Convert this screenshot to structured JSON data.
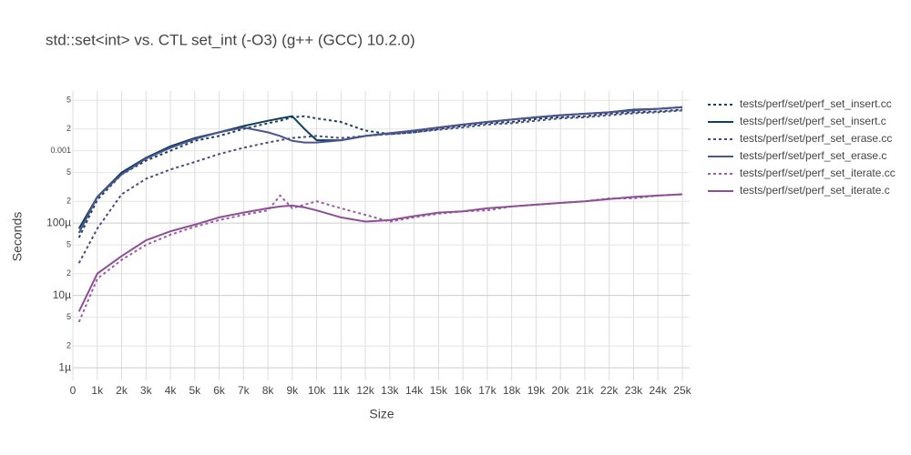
{
  "chart_data": {
    "type": "line",
    "title": "std::set<int> vs. CTL set_int (-O3) (g++ (GCC) 10.2.0)",
    "xlabel": "Size",
    "ylabel": "Seconds",
    "log_y": true,
    "grid": true,
    "legend": "right",
    "x": [
      250,
      1000,
      2000,
      3000,
      4000,
      5000,
      6000,
      7000,
      8000,
      8500,
      9000,
      9500,
      10000,
      11000,
      12000,
      13000,
      14000,
      15000,
      16000,
      17000,
      18000,
      19000,
      20000,
      21000,
      22000,
      23000,
      24000,
      25000
    ],
    "xlim": [
      0,
      25300
    ],
    "xticks": [
      0,
      {
        "value": 1000,
        "label": "1k"
      },
      {
        "value": 2000,
        "label": "2k"
      },
      {
        "value": 3000,
        "label": "3k"
      },
      {
        "value": 4000,
        "label": "4k"
      },
      {
        "value": 5000,
        "label": "5k"
      },
      {
        "value": 6000,
        "label": "6k"
      },
      {
        "value": 7000,
        "label": "7k"
      },
      {
        "value": 8000,
        "label": "8k"
      },
      {
        "value": 9000,
        "label": "9k"
      },
      {
        "value": 10000,
        "label": "10k"
      },
      {
        "value": 11000,
        "label": "11k"
      },
      {
        "value": 12000,
        "label": "12k"
      },
      {
        "value": 13000,
        "label": "13k"
      },
      {
        "value": 14000,
        "label": "14k"
      },
      {
        "value": 15000,
        "label": "15k"
      },
      {
        "value": 16000,
        "label": "16k"
      },
      {
        "value": 17000,
        "label": "17k"
      },
      {
        "value": 18000,
        "label": "18k"
      },
      {
        "value": 19000,
        "label": "19k"
      },
      {
        "value": 20000,
        "label": "20k"
      },
      {
        "value": 21000,
        "label": "21k"
      },
      {
        "value": 22000,
        "label": "22k"
      },
      {
        "value": 23000,
        "label": "23k"
      },
      {
        "value": 24000,
        "label": "24k"
      },
      {
        "value": 25000,
        "label": "25k"
      }
    ],
    "ylim": [
      6.7e-07,
      0.0067
    ],
    "yticks": [
      {
        "value": 1e-06,
        "label": "1µ"
      },
      {
        "value": 2e-06,
        "label": "2"
      },
      {
        "value": 5e-06,
        "label": "5"
      },
      {
        "value": 1e-05,
        "label": "10µ"
      },
      {
        "value": 2e-05,
        "label": "2"
      },
      {
        "value": 5e-05,
        "label": "5"
      },
      {
        "value": 0.0001,
        "label": "100µ"
      },
      {
        "value": 0.0002,
        "label": "2"
      },
      {
        "value": 0.0005,
        "label": "5"
      },
      0.001,
      {
        "value": 0.002,
        "label": "2"
      },
      {
        "value": 0.005,
        "label": "5"
      }
    ],
    "series": [
      {
        "name": "tests/perf/set/perf_set_insert.cc",
        "color": "#1f4060",
        "dash": "dot",
        "values": [
          6.3e-05,
          0.00021,
          0.00047,
          0.00073,
          0.001,
          0.00137,
          0.0016,
          0.002,
          0.0024,
          0.0026,
          0.0029,
          0.003,
          0.0028,
          0.0025,
          0.0019,
          0.0017,
          0.0018,
          0.002,
          0.0022,
          0.0024,
          0.0025,
          0.00275,
          0.0029,
          0.003,
          0.00325,
          0.0034,
          0.0035,
          0.0037
        ]
      },
      {
        "name": "tests/perf/set/perf_set_insert.c",
        "color": "#0e3f5c",
        "dash": "solid",
        "values": [
          8.4e-05,
          0.00023,
          0.0005,
          0.0008,
          0.00115,
          0.0015,
          0.0018,
          0.0022,
          0.0026,
          0.0028,
          0.003,
          0.002,
          0.0014,
          0.0014,
          0.0016,
          0.00175,
          0.0019,
          0.0021,
          0.0023,
          0.0025,
          0.0027,
          0.0029,
          0.0031,
          0.00325,
          0.0034,
          0.0037,
          0.0038,
          0.004
        ]
      },
      {
        "name": "tests/perf/set/perf_set_erase.cc",
        "color": "#454c86",
        "dash": "dot",
        "values": [
          2.8e-05,
          8.4e-05,
          0.00025,
          0.00041,
          0.00055,
          0.0007,
          0.0009,
          0.0011,
          0.0013,
          0.0014,
          0.0015,
          0.00155,
          0.0016,
          0.0015,
          0.0016,
          0.0017,
          0.0018,
          0.00195,
          0.0021,
          0.0023,
          0.0024,
          0.0026,
          0.0028,
          0.0029,
          0.0031,
          0.0033,
          0.0034,
          0.0036
        ]
      },
      {
        "name": "tests/perf/set/perf_set_erase.c",
        "color": "#4c5590",
        "dash": "solid",
        "values": [
          7.3e-05,
          0.00023,
          0.00047,
          0.00078,
          0.0011,
          0.00145,
          0.0018,
          0.0021,
          0.0018,
          0.0016,
          0.00137,
          0.0013,
          0.0013,
          0.0014,
          0.0016,
          0.00175,
          0.0019,
          0.0021,
          0.0023,
          0.0025,
          0.0027,
          0.0029,
          0.0031,
          0.00325,
          0.0034,
          0.0036,
          0.0038,
          0.004
        ]
      },
      {
        "name": "tests/perf/set/perf_set_iterate.cc",
        "color": "#a05aa8",
        "dash": "dot",
        "values": [
          4.3e-06,
          1.7e-05,
          3.1e-05,
          5e-05,
          6.9e-05,
          8.9e-05,
          0.00011,
          0.00013,
          0.00015,
          0.00024,
          0.00016,
          0.00018,
          0.0002,
          0.00016,
          0.00013,
          0.000105,
          0.00012,
          0.000135,
          0.000145,
          0.00015,
          0.00017,
          0.00018,
          0.00019,
          0.0002,
          0.00022,
          0.00022,
          0.00024,
          0.00025
        ]
      },
      {
        "name": "tests/perf/set/perf_set_iterate.c",
        "color": "#8e4f98",
        "dash": "solid",
        "values": [
          6e-06,
          2e-05,
          3.5e-05,
          5.8e-05,
          7.7e-05,
          9.5e-05,
          0.00012,
          0.00014,
          0.00016,
          0.00017,
          0.000175,
          0.000165,
          0.00015,
          0.00012,
          0.000105,
          0.00011,
          0.000125,
          0.00014,
          0.000145,
          0.00016,
          0.00017,
          0.00018,
          0.00019,
          0.0002,
          0.000215,
          0.00023,
          0.00024,
          0.00025
        ]
      }
    ]
  }
}
